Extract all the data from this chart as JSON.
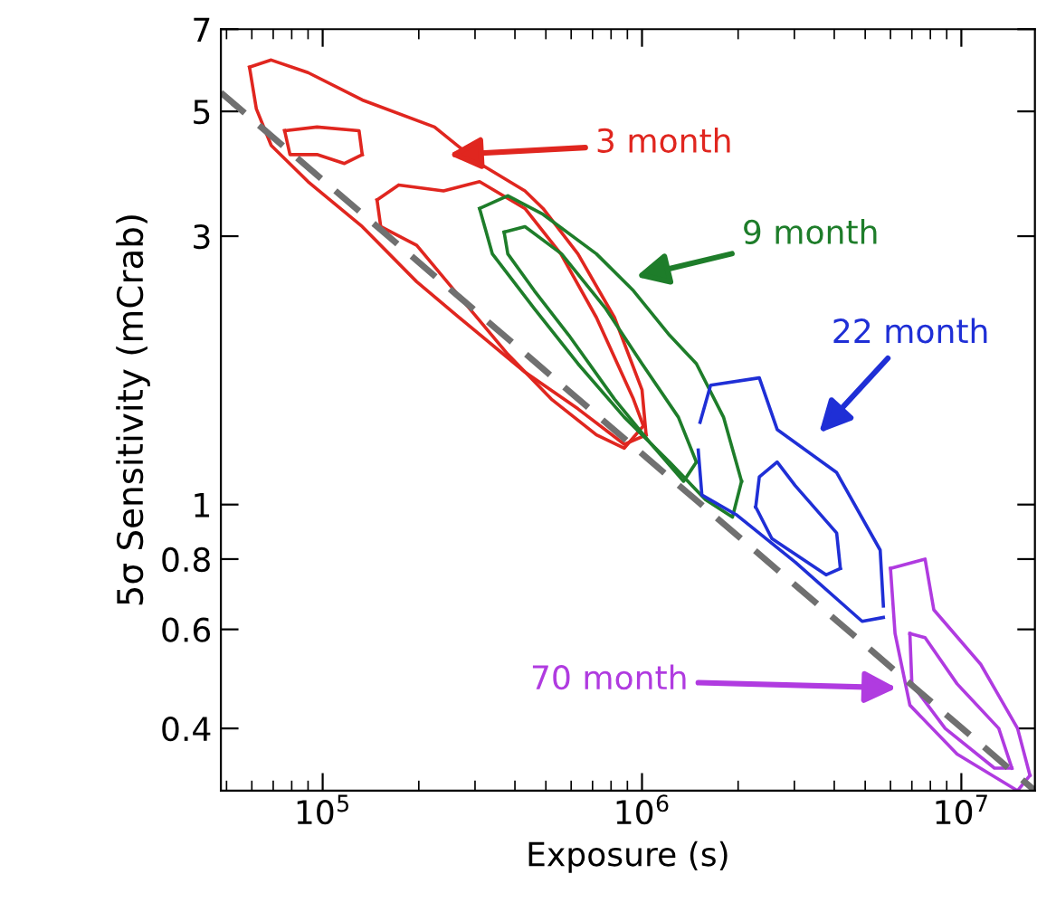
{
  "chart_data": {
    "type": "line",
    "xlabel": "Exposure (s)",
    "ylabel": "5σ Sensitivity (mCrab)",
    "log": "xy",
    "xlim": [
      48000,
      17000000
    ],
    "ylim": [
      0.31,
      7
    ],
    "xticks": [
      {
        "value": 100000,
        "label": "10$^{5}$"
      },
      {
        "value": 1000000,
        "label": "10$^{6}$"
      },
      {
        "value": 10000000,
        "label": "10$^{7}$"
      }
    ],
    "yticks": [
      0.4,
      0.6,
      0.8,
      1,
      3,
      5,
      7
    ],
    "series": [
      {
        "name": "3 month",
        "color": "#e0261f",
        "x": [
          59000,
          69000,
          90000,
          133000,
          224000,
          310000,
          430000,
          490000,
          630000,
          820000,
          1000000,
          1030000
        ],
        "values": [
          5.99,
          6.17,
          5.86,
          5.24,
          4.69,
          4.04,
          3.61,
          3.36,
          2.79,
          2.15,
          1.6,
          1.33
        ]
      },
      {
        "color": "#e0261f",
        "x": [
          59000,
          62000,
          69000,
          90000,
          133000,
          197000,
          290000,
          430000,
          630000,
          880000,
          1030000
        ],
        "values": [
          5.99,
          5.05,
          4.35,
          3.75,
          3.12,
          2.49,
          2.07,
          1.72,
          1.48,
          1.28,
          1.33
        ]
      },
      {
        "color": "#e0261f",
        "x": [
          148000,
          173000,
          239000,
          310000,
          430000,
          557000,
          720000,
          940000,
          1010000
        ],
        "values": [
          3.48,
          3.7,
          3.61,
          3.75,
          3.36,
          2.79,
          2.15,
          1.54,
          1.38
        ]
      },
      {
        "color": "#e0261f",
        "x": [
          148000,
          152000,
          197000,
          272000,
          380000,
          520000,
          720000,
          880000,
          1010000
        ],
        "values": [
          3.48,
          3.12,
          2.89,
          2.32,
          1.85,
          1.54,
          1.33,
          1.26,
          1.38
        ]
      },
      {
        "color": "#e0261f",
        "x": [
          76000,
          96000,
          130000,
          133000
        ],
        "values": [
          4.62,
          4.69,
          4.62,
          4.19
        ]
      },
      {
        "color": "#e0261f",
        "x": [
          76000,
          79000,
          96000,
          117000,
          133000
        ],
        "values": [
          4.62,
          4.19,
          4.19,
          4.04,
          4.19
        ]
      },
      {
        "name": "9 month",
        "color": "#1e7d2a",
        "x": [
          310000,
          380000,
          490000,
          720000,
          940000,
          1220000,
          1480000,
          1800000,
          2050000
        ],
        "values": [
          3.36,
          3.54,
          3.28,
          2.79,
          2.4,
          2.0,
          1.78,
          1.43,
          1.1
        ]
      },
      {
        "color": "#1e7d2a",
        "x": [
          310000,
          340000,
          460000,
          630000,
          880000,
          1220000,
          1580000,
          1920000,
          2050000
        ],
        "values": [
          3.36,
          2.79,
          2.23,
          1.78,
          1.43,
          1.19,
          1.02,
          0.95,
          1.1
        ]
      },
      {
        "color": "#1e7d2a",
        "x": [
          370000,
          430000,
          560000,
          770000,
          1000000,
          1300000,
          1480000
        ],
        "values": [
          3.05,
          3.12,
          2.79,
          2.23,
          1.78,
          1.43,
          1.19
        ]
      },
      {
        "color": "#1e7d2a",
        "x": [
          370000,
          380000,
          460000,
          590000,
          820000,
          1070000,
          1350000,
          1480000
        ],
        "values": [
          3.05,
          2.79,
          2.4,
          2.0,
          1.54,
          1.28,
          1.1,
          1.19
        ]
      },
      {
        "name": "22 month",
        "color": "#1f2fd6",
        "x": [
          1520000,
          1640000,
          2330000,
          2650000,
          4070000,
          5570000,
          5700000
        ],
        "values": [
          1.4,
          1.63,
          1.68,
          1.36,
          1.14,
          0.83,
          0.66
        ]
      },
      {
        "color": "#1f2fd6",
        "x": [
          1500000,
          1540000,
          1970000,
          3020000,
          4890000,
          5700000
        ],
        "values": [
          1.25,
          1.04,
          0.96,
          0.79,
          0.62,
          0.63
        ]
      },
      {
        "color": "#1f2fd6",
        "x": [
          2270000,
          2330000,
          2650000,
          3020000,
          4070000,
          4180000
        ],
        "values": [
          0.99,
          1.12,
          1.19,
          1.08,
          0.89,
          0.77
        ]
      },
      {
        "color": "#1f2fd6",
        "x": [
          2270000,
          2550000,
          3770000,
          4180000
        ],
        "values": [
          0.99,
          0.87,
          0.75,
          0.77
        ]
      },
      {
        "name": "70 month",
        "color": "#b03be0",
        "x": [
          6000000,
          7700000,
          8200000,
          11500000,
          15000000,
          16400000
        ],
        "values": [
          0.77,
          0.8,
          0.65,
          0.52,
          0.4,
          0.33
        ]
      },
      {
        "color": "#b03be0",
        "x": [
          6000000,
          6200000,
          6900000,
          9700000,
          15000000,
          16400000
        ],
        "values": [
          0.77,
          0.59,
          0.44,
          0.36,
          0.31,
          0.33
        ]
      },
      {
        "color": "#b03be0",
        "x": [
          6900000,
          7700000,
          9700000,
          13100000,
          14400000
        ],
        "values": [
          0.59,
          0.58,
          0.48,
          0.4,
          0.34
        ]
      },
      {
        "color": "#b03be0",
        "x": [
          6900000,
          7000000,
          8900000,
          12700000,
          14400000
        ],
        "values": [
          0.59,
          0.48,
          0.4,
          0.34,
          0.34
        ]
      },
      {
        "color": "#707070",
        "line_style": "dashed",
        "x": [
          48000,
          17000000
        ],
        "values": [
          5.4,
          0.31
        ]
      }
    ]
  }
}
